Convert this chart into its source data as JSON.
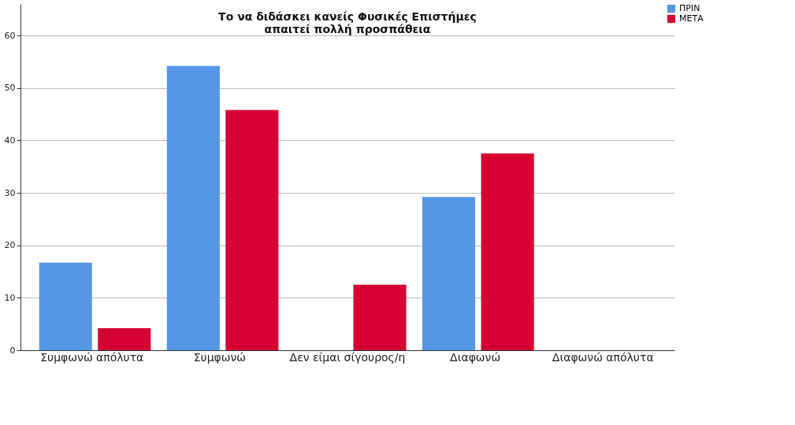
{
  "chart_data": {
    "type": "bar",
    "title": "Το να διδάσκει κανείς Φυσικές Επιστήμες\nαπαιτεί πολλή προσπάθεια",
    "categories": [
      "Συμφωνώ απόλυτα",
      "Συμφωνώ",
      "Δεν είμαι σίγουρος/η",
      "Διαφωνώ",
      "Διαφωνώ απόλυτα"
    ],
    "series": [
      {
        "name": "ΠΡΙΝ",
        "color": "#5596e6",
        "values": [
          16.7,
          54.2,
          null,
          29.2,
          null
        ]
      },
      {
        "name": "ΜΕΤΑ",
        "color": "#d60032",
        "values": [
          4.2,
          45.8,
          12.5,
          37.5,
          null
        ]
      }
    ],
    "ylim": [
      0,
      66
    ],
    "yticks": [
      0,
      10,
      20,
      30,
      40,
      50,
      60
    ],
    "grid": "y",
    "legend": "top right"
  }
}
